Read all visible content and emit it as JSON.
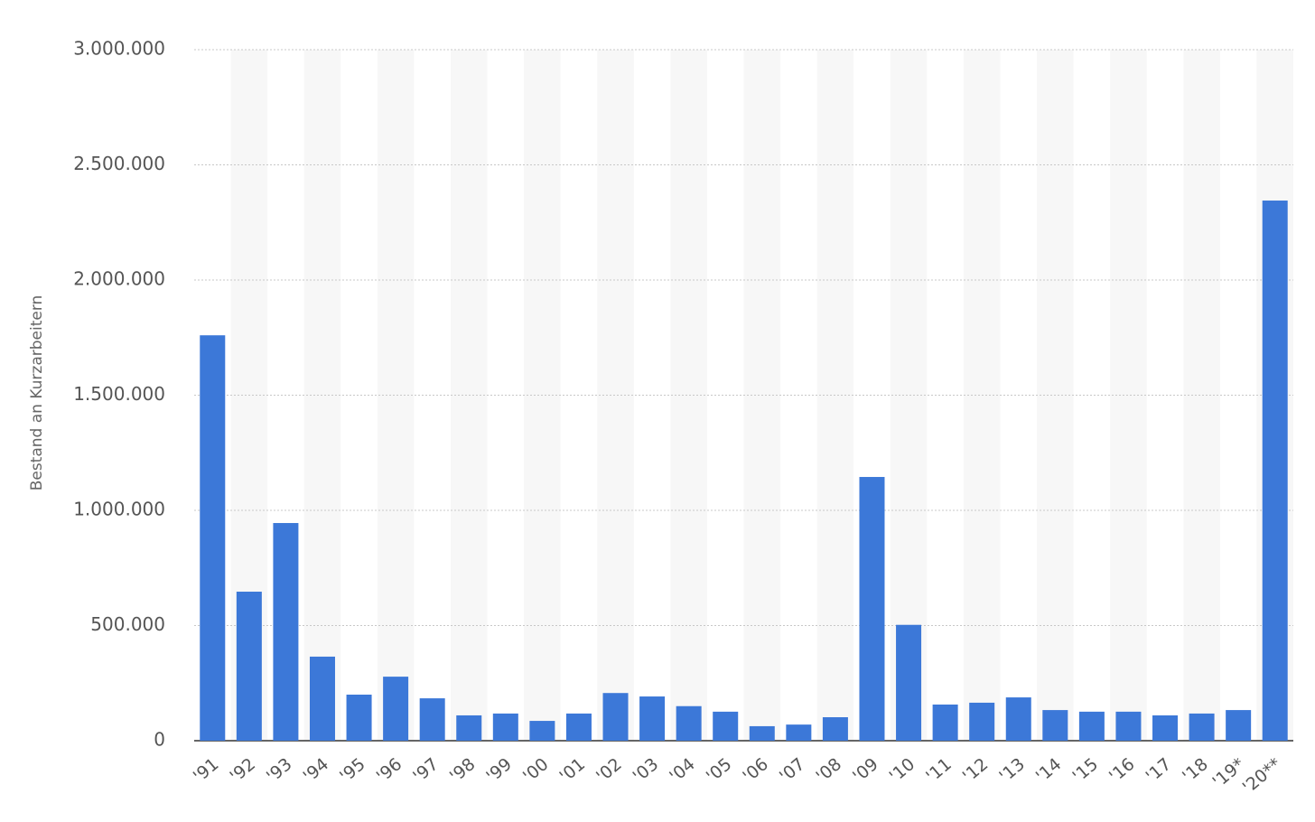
{
  "chart_data": {
    "type": "bar",
    "y_label": "Bestand an Kurzarbeitern",
    "categories": [
      "'91",
      "'92",
      "'93",
      "'94",
      "'95",
      "'96",
      "'97",
      "'98",
      "'99",
      "'00",
      "'01",
      "'02",
      "'03",
      "'04",
      "'05",
      "'06",
      "'07",
      "'08",
      "'09",
      "'10",
      "'11",
      "'12",
      "'13",
      "'14",
      "'15",
      "'16",
      "'17",
      "'18",
      "'19*",
      "'20**"
    ],
    "values": [
      1760000,
      647000,
      945000,
      365000,
      200000,
      278000,
      184000,
      110000,
      118000,
      86000,
      118000,
      207000,
      192000,
      150000,
      126000,
      63000,
      70000,
      102000,
      1145000,
      503000,
      157000,
      165000,
      188000,
      133000,
      126000,
      126000,
      110000,
      118000,
      133000,
      2345000
    ],
    "color": "#3c78d8",
    "ylim": [
      0,
      3000000
    ],
    "yticks": [
      0,
      {
        "value": 500000,
        "label": "500.000"
      },
      {
        "value": 1000000,
        "label": "1.000.000"
      },
      {
        "value": 1500000,
        "label": "1.500.000"
      },
      {
        "value": 2000000,
        "label": "2.000.000"
      },
      {
        "value": 2500000,
        "label": "2.500.000"
      },
      {
        "value": 3000000,
        "label": "3.000.000"
      }
    ],
    "grid": true
  }
}
